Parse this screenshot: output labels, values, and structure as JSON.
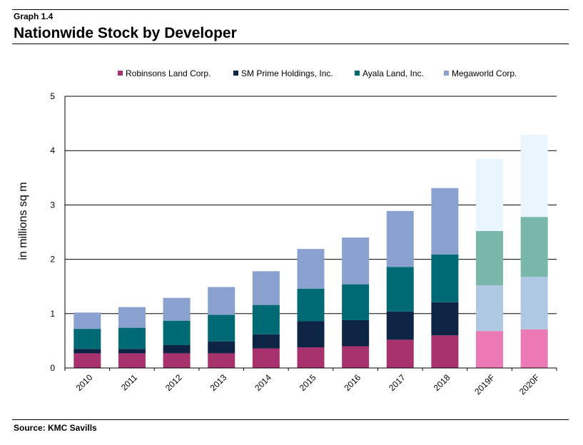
{
  "header": {
    "graph_label": "Graph 1.4",
    "title": "Nationwide Stock by Developer"
  },
  "footer": {
    "source": "Source: KMC Savills"
  },
  "chart_data": {
    "type": "bar",
    "stacked": true,
    "title": "Nationwide Stock by Developer",
    "xlabel": "",
    "ylabel": "in millions sq m",
    "ylim": [
      0,
      5
    ],
    "yticks": [
      0,
      1,
      2,
      3,
      4,
      5
    ],
    "grid": true,
    "legend_position": "top",
    "categories": [
      "2010",
      "2011",
      "2012",
      "2013",
      "2014",
      "2015",
      "2016",
      "2017",
      "2018",
      "2019F",
      "2020F"
    ],
    "forecast_categories": [
      "2019F",
      "2020F"
    ],
    "series": [
      {
        "name": "Robinsons Land Corp.",
        "color": "#a8326e",
        "forecast_color": "#ea79b5",
        "values": [
          0.27,
          0.27,
          0.27,
          0.27,
          0.36,
          0.38,
          0.4,
          0.52,
          0.6,
          0.68,
          0.71
        ]
      },
      {
        "name": "SM Prime Holdings, Inc.",
        "color": "#0d2444",
        "forecast_color": "#aec8e3",
        "values": [
          0.08,
          0.08,
          0.15,
          0.22,
          0.26,
          0.48,
          0.48,
          0.52,
          0.61,
          0.84,
          0.97
        ]
      },
      {
        "name": "Ayala Land, Inc.",
        "color": "#006a74",
        "forecast_color": "#78b7a9",
        "values": [
          0.37,
          0.39,
          0.45,
          0.49,
          0.54,
          0.6,
          0.66,
          0.82,
          0.88,
          1.0,
          1.1
        ]
      },
      {
        "name": "Megaworld Corp.",
        "color": "#8aa0cf",
        "forecast_color": "#eaf6fd",
        "values": [
          0.3,
          0.38,
          0.42,
          0.51,
          0.62,
          0.73,
          0.86,
          1.03,
          1.22,
          1.33,
          1.51
        ]
      }
    ]
  }
}
